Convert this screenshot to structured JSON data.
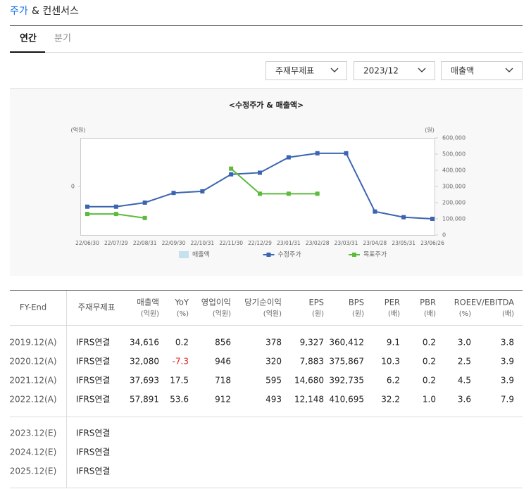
{
  "header": {
    "title_accent": "주가",
    "title_rest": "& 컨센서스"
  },
  "tabs": [
    "연간",
    "분기"
  ],
  "filters": [
    "주재무제표",
    "2023/12",
    "매출액"
  ],
  "chart_data": {
    "type": "line",
    "title": "<수정주가 & 매출액>",
    "ylabel": "(억원)",
    "y2label": "(원)",
    "categories": [
      "22/06/30",
      "22/07/29",
      "22/08/31",
      "22/09/30",
      "22/10/31",
      "22/11/30",
      "22/12/29",
      "23/01/31",
      "23/02/28",
      "23/03/31",
      "23/04/28",
      "23/05/31",
      "23/06/26"
    ],
    "ylim": [
      -1,
      1
    ],
    "yticks": [
      0
    ],
    "y2lim": [
      0,
      600000
    ],
    "y2ticks": [
      0,
      {
        "value": 100000,
        "label": "100,000"
      },
      {
        "value": 200000,
        "label": "200,000"
      },
      {
        "value": 300000,
        "label": "300,000"
      },
      {
        "value": 400000,
        "label": "400,000"
      },
      {
        "value": 500000,
        "label": "500,000"
      },
      {
        "value": 600000,
        "label": "600,000"
      }
    ],
    "series": [
      {
        "name": "매출액",
        "type": "bar",
        "color": "#c5e1ec",
        "values": [
          null,
          null,
          null,
          null,
          null,
          null,
          null,
          null,
          null,
          null,
          null,
          null,
          null
        ]
      },
      {
        "name": "수정주가",
        "type": "line",
        "axis": "y2",
        "color": "#3b65b1",
        "values": [
          175000,
          175000,
          200000,
          260000,
          270000,
          375000,
          385000,
          480000,
          505000,
          505000,
          145000,
          110000,
          100000
        ]
      },
      {
        "name": "목표주가",
        "type": "line",
        "axis": "y2",
        "color": "#5cbb3c",
        "values": [
          130000,
          130000,
          105000,
          null,
          null,
          410000,
          255000,
          255000,
          255000,
          null,
          null,
          null,
          null
        ]
      }
    ]
  },
  "table": {
    "columns": [
      {
        "label": "FY-End"
      },
      {
        "label": "주재무제표"
      },
      {
        "label": "매출액",
        "unit": "(억원)"
      },
      {
        "label": "YoY",
        "unit": "(%)"
      },
      {
        "label": "영업이익",
        "unit": "(억원)"
      },
      {
        "label": "당기순이익",
        "unit": "(억원)"
      },
      {
        "label": "EPS",
        "unit": "(원)"
      },
      {
        "label": "BPS",
        "unit": "(원)"
      },
      {
        "label": "PER",
        "unit": "(배)"
      },
      {
        "label": "PBR",
        "unit": "(배)"
      },
      {
        "label": "ROE",
        "unit": "(%)"
      },
      {
        "label": "EV/EBITDA",
        "unit": "(배)"
      }
    ],
    "actual_rows": [
      [
        "2019.12(A)",
        "IFRS연결",
        "34,616",
        "0.2",
        "856",
        "378",
        "9,327",
        "360,412",
        "9.1",
        "0.2",
        "3.0",
        "3.8"
      ],
      [
        "2020.12(A)",
        "IFRS연결",
        "32,080",
        "-7.3",
        "946",
        "320",
        "7,883",
        "375,867",
        "10.3",
        "0.2",
        "2.5",
        "3.9"
      ],
      [
        "2021.12(A)",
        "IFRS연결",
        "37,693",
        "17.5",
        "718",
        "595",
        "14,680",
        "392,735",
        "6.2",
        "0.2",
        "4.5",
        "3.9"
      ],
      [
        "2022.12(A)",
        "IFRS연결",
        "57,891",
        "53.6",
        "912",
        "493",
        "12,148",
        "410,695",
        "32.2",
        "1.0",
        "3.6",
        "7.9"
      ]
    ],
    "estimate_rows": [
      [
        "2023.12(E)",
        "IFRS연결"
      ],
      [
        "2024.12(E)",
        "IFRS연결"
      ],
      [
        "2025.12(E)",
        "IFRS연결"
      ]
    ]
  }
}
